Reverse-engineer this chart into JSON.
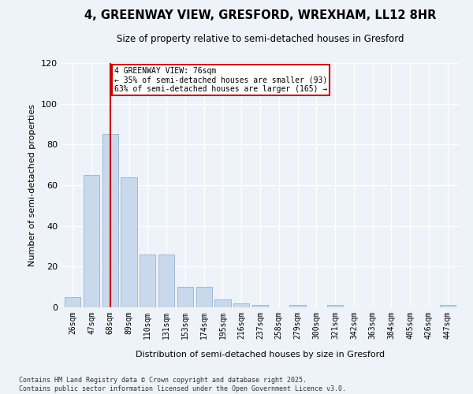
{
  "title_line1": "4, GREENWAY VIEW, GRESFORD, WREXHAM, LL12 8HR",
  "title_line2": "Size of property relative to semi-detached houses in Gresford",
  "xlabel": "Distribution of semi-detached houses by size in Gresford",
  "ylabel": "Number of semi-detached properties",
  "categories": [
    "26sqm",
    "47sqm",
    "68sqm",
    "89sqm",
    "110sqm",
    "131sqm",
    "153sqm",
    "174sqm",
    "195sqm",
    "216sqm",
    "237sqm",
    "258sqm",
    "279sqm",
    "300sqm",
    "321sqm",
    "342sqm",
    "363sqm",
    "384sqm",
    "405sqm",
    "426sqm",
    "447sqm"
  ],
  "values": [
    5,
    65,
    85,
    64,
    26,
    26,
    10,
    10,
    4,
    2,
    1,
    0,
    1,
    0,
    1,
    0,
    0,
    0,
    0,
    0,
    1
  ],
  "bar_color": "#c9d9ec",
  "bar_edge_color": "#a0b8d8",
  "vline_x": 2,
  "annotation_title": "4 GREENWAY VIEW: 76sqm",
  "annotation_line1": "← 35% of semi-detached houses are smaller (93)",
  "annotation_line2": "63% of semi-detached houses are larger (165) →",
  "annotation_box_color": "#ffffff",
  "annotation_box_edge_color": "#cc0000",
  "vline_color": "#cc0000",
  "ylim": [
    0,
    120
  ],
  "yticks": [
    0,
    20,
    40,
    60,
    80,
    100,
    120
  ],
  "background_color": "#eef2f9",
  "grid_color": "#ffffff",
  "footer_line1": "Contains HM Land Registry data © Crown copyright and database right 2025.",
  "footer_line2": "Contains public sector information licensed under the Open Government Licence v3.0."
}
